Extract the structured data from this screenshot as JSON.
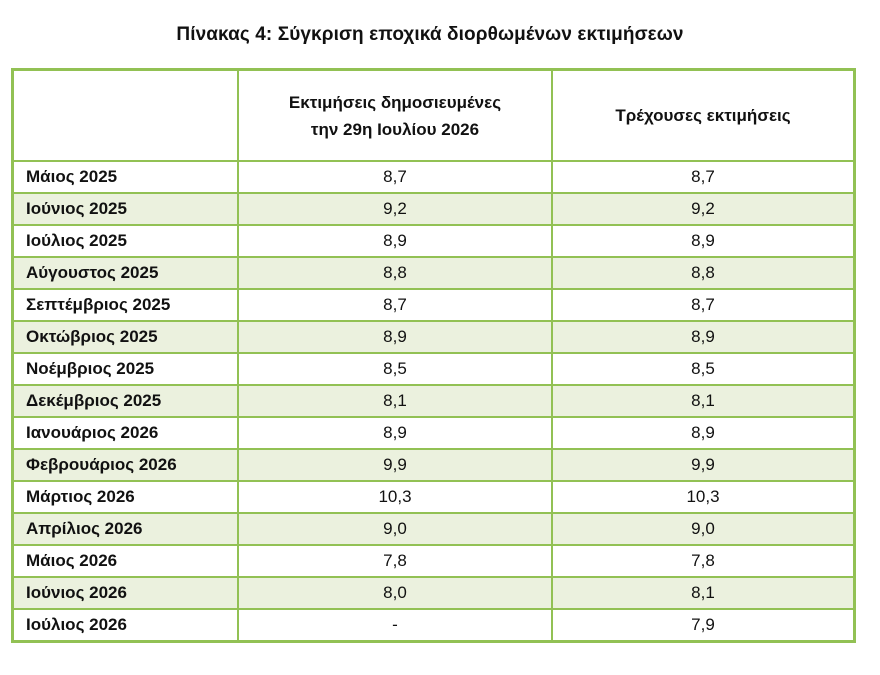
{
  "title": "Πίνακας 4: Σύγκριση εποχικά διορθωμένων εκτιμήσεων",
  "columns": {
    "col1_line1": "Εκτιμήσεις δημοσιευμένες",
    "col1_line2": "την 29η Ιουλίου 2026",
    "col2": "Τρέχουσες εκτιμήσεις"
  },
  "colors": {
    "border": "#92c154",
    "stripe": "#ebf1de"
  },
  "rows": [
    {
      "month": "Μάιος 2025",
      "published": "8,7",
      "current": "8,7"
    },
    {
      "month": "Ιούνιος 2025",
      "published": "9,2",
      "current": "9,2"
    },
    {
      "month": "Ιούλιος 2025",
      "published": "8,9",
      "current": "8,9"
    },
    {
      "month": "Αύγουστος 2025",
      "published": "8,8",
      "current": "8,8"
    },
    {
      "month": "Σεπτέμβριος 2025",
      "published": "8,7",
      "current": "8,7"
    },
    {
      "month": "Οκτώβριος 2025",
      "published": "8,9",
      "current": "8,9"
    },
    {
      "month": "Νοέμβριος 2025",
      "published": "8,5",
      "current": "8,5"
    },
    {
      "month": "Δεκέμβριος 2025",
      "published": "8,1",
      "current": "8,1"
    },
    {
      "month": "Ιανουάριος 2026",
      "published": "8,9",
      "current": "8,9"
    },
    {
      "month": "Φεβρουάριος 2026",
      "published": "9,9",
      "current": "9,9"
    },
    {
      "month": "Μάρτιος 2026",
      "published": "10,3",
      "current": "10,3"
    },
    {
      "month": "Απρίλιος 2026",
      "published": "9,0",
      "current": "9,0"
    },
    {
      "month": "Μάιος 2026",
      "published": "7,8",
      "current": "7,8"
    },
    {
      "month": "Ιούνιος 2026",
      "published": "8,0",
      "current": "8,1"
    },
    {
      "month": "Ιούλιος 2026",
      "published": "-",
      "current": "7,9"
    }
  ]
}
